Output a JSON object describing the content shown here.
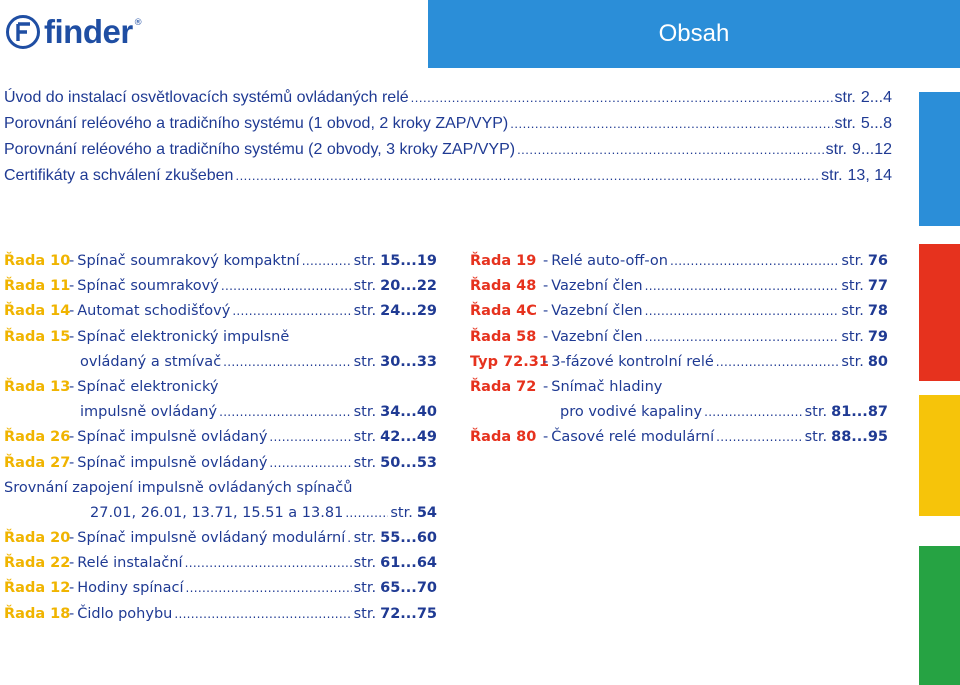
{
  "header": {
    "logo_text": "finder",
    "logo_reg": "®",
    "title": "Obsah"
  },
  "colors": {
    "brand_blue": "#1f4ea3",
    "title_bar": "#2b8ed8",
    "text_blue": "#1f3a93",
    "series_yellow": "#f0b400",
    "series_red": "#e6321e",
    "bar_blue": "#2b8ed8",
    "bar_red": "#e6321e",
    "bar_yellow": "#f6c40a",
    "bar_green": "#26a343"
  },
  "intro": [
    {
      "title": "Úvod do instalací osvětlovacích systémů ovládaných relé",
      "str": "str.",
      "page": "2...4"
    },
    {
      "title": "Porovnání reléového a tradičního systému (1 obvod, 2 kroky ZAP/VYP)",
      "str": "str.",
      "page": "5...8"
    },
    {
      "title": "Porovnání reléového a tradičního systému (2 obvody, 3 kroky ZAP/VYP)",
      "str": "str.",
      "page": "9...12"
    },
    {
      "title": "Certifikáty a schválení zkušeben",
      "str": "str.",
      "page": "13, 14"
    }
  ],
  "left_series": [
    {
      "code": "Řada 10",
      "sep": "-",
      "desc": "Spínač soumrakový kompaktní",
      "str": "str.",
      "page": "15...19"
    },
    {
      "code": "Řada 11",
      "sep": "-",
      "desc": "Spínač soumrakový",
      "str": "str.",
      "page": "20...22"
    },
    {
      "code": "Řada 14",
      "sep": "-",
      "desc": "Automat schodišťový",
      "str": "str.",
      "page": "24...29"
    },
    {
      "code": "Řada 15",
      "sep": "-",
      "desc": "Spínač elektronický impulsně"
    },
    {
      "desc": "ovládaný a stmívač",
      "str": "str.",
      "page": "30...33"
    },
    {
      "code": "Řada 13",
      "sep": "-",
      "desc": "Spínač elektronický"
    },
    {
      "desc": "impulsně ovládaný",
      "str": "str.",
      "page": "34...40"
    },
    {
      "code": "Řada 26",
      "sep": "-",
      "desc": "Spínač impulsně ovládaný",
      "str": "str.",
      "page": "42...49"
    },
    {
      "code": "Řada 27",
      "sep": "-",
      "desc": "Spínač impulsně ovládaný",
      "str": "str.",
      "page": "50...53"
    },
    {
      "desc": "Srovnání zapojení impulsně ovládaných spínačů"
    },
    {
      "desc": "27.01, 26.01, 13.71, 15.51 a 13.81",
      "str": "str.",
      "page": "54"
    },
    {
      "code": "Řada 20",
      "sep": "-",
      "desc": "Spínač impulsně ovládaný modulární",
      "str": "str.",
      "page": "55...60"
    },
    {
      "code": "Řada 22",
      "sep": "-",
      "desc": "Relé instalační",
      "str": "str.",
      "page": "61...64"
    },
    {
      "code": "Řada 12",
      "sep": "-",
      "desc": "Hodiny spínací",
      "str": "str.",
      "page": "65...70"
    },
    {
      "code": "Řada 18",
      "sep": "-",
      "desc": "Čidlo pohybu",
      "str": "str.",
      "page": "72...75"
    }
  ],
  "right_series": [
    {
      "code": "Řada 19",
      "sep": "-",
      "desc": "Relé auto-off-on",
      "str": "str.",
      "page": "76"
    },
    {
      "code": "Řada 48",
      "sep": "-",
      "desc": "Vazební člen",
      "str": "str.",
      "page": "77"
    },
    {
      "code": "Řada 4C",
      "sep": "-",
      "desc": "Vazební člen",
      "str": "str.",
      "page": "78"
    },
    {
      "code": "Řada 58",
      "sep": "-",
      "desc": "Vazební člen",
      "str": "str.",
      "page": "79"
    },
    {
      "code": "Typ 72.31",
      "sep": "-",
      "desc": "3-fázové kontrolní relé",
      "str": "str.",
      "page": "80"
    },
    {
      "code": "Řada 72",
      "sep": "-",
      "desc": "Snímač hladiny"
    },
    {
      "desc": "pro vodivé kapaliny",
      "str": "str.",
      "page": "81...87"
    },
    {
      "code": "Řada 80",
      "sep": "-",
      "desc": "Časové relé modulární",
      "str": "str.",
      "page": "88...95"
    }
  ]
}
